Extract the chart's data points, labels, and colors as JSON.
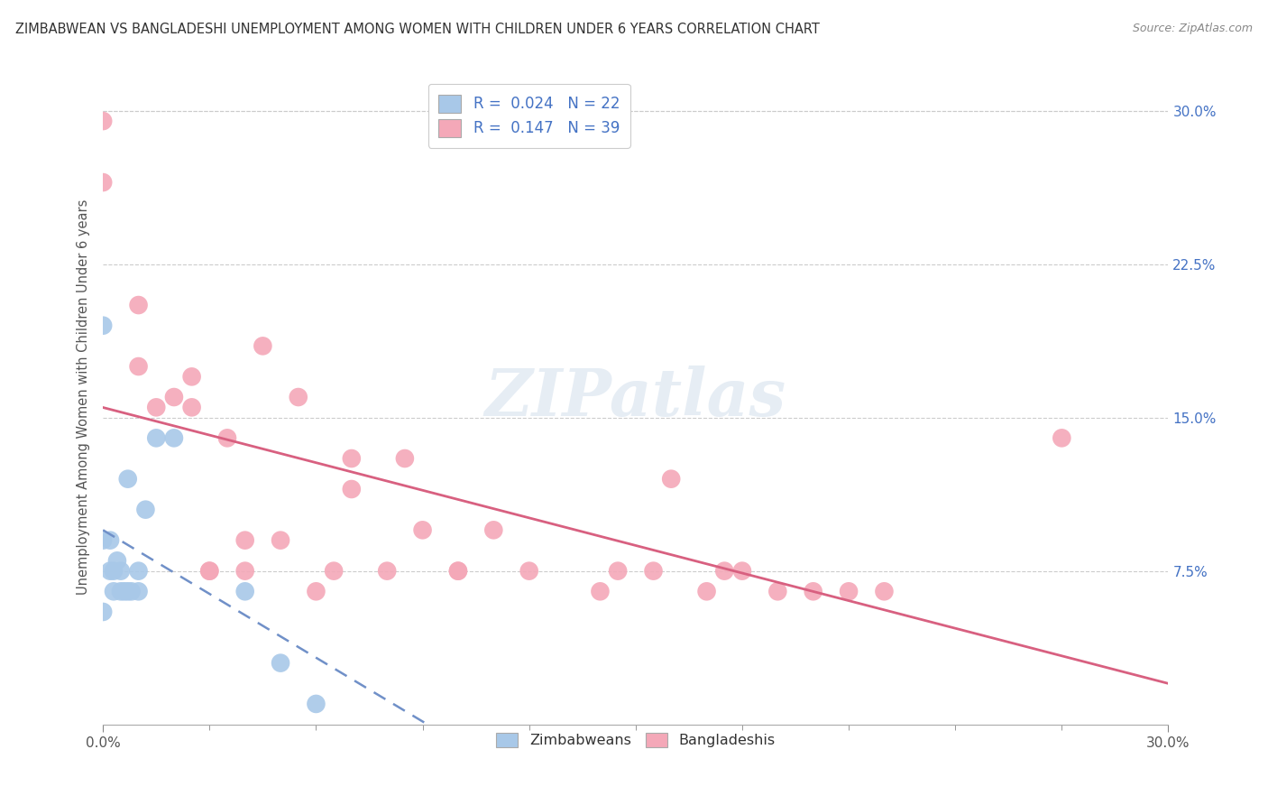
{
  "title": "ZIMBABWEAN VS BANGLADESHI UNEMPLOYMENT AMONG WOMEN WITH CHILDREN UNDER 6 YEARS CORRELATION CHART",
  "source": "Source: ZipAtlas.com",
  "ylabel": "Unemployment Among Women with Children Under 6 years",
  "legend_label1": "R =  0.024   N = 22",
  "legend_label2": "R =  0.147   N = 39",
  "legend_bottom1": "Zimbabweans",
  "legend_bottom2": "Bangladeshis",
  "color_blue": "#a8c8e8",
  "color_pink": "#f4a8b8",
  "color_blue_text": "#4472c4",
  "color_trendline_blue": "#7090c8",
  "color_trendline_pink": "#d86080",
  "ytick_labels": [
    "7.5%",
    "15.0%",
    "22.5%",
    "30.0%"
  ],
  "ytick_vals": [
    0.075,
    0.15,
    0.225,
    0.3
  ],
  "xmin": 0.0,
  "xmax": 0.3,
  "ymin": 0.0,
  "ymax": 0.32,
  "zimbabwe_x": [
    0.0,
    0.0,
    0.0,
    0.002,
    0.002,
    0.003,
    0.003,
    0.004,
    0.005,
    0.005,
    0.006,
    0.007,
    0.007,
    0.008,
    0.01,
    0.01,
    0.012,
    0.015,
    0.02,
    0.04,
    0.05,
    0.06
  ],
  "zimbabwe_y": [
    0.195,
    0.09,
    0.055,
    0.09,
    0.075,
    0.075,
    0.065,
    0.08,
    0.075,
    0.065,
    0.065,
    0.12,
    0.065,
    0.065,
    0.065,
    0.075,
    0.105,
    0.14,
    0.14,
    0.065,
    0.03,
    0.01
  ],
  "bangladesh_x": [
    0.0,
    0.0,
    0.01,
    0.01,
    0.015,
    0.02,
    0.025,
    0.025,
    0.03,
    0.03,
    0.035,
    0.04,
    0.04,
    0.045,
    0.05,
    0.055,
    0.06,
    0.065,
    0.07,
    0.07,
    0.08,
    0.085,
    0.09,
    0.1,
    0.1,
    0.11,
    0.12,
    0.14,
    0.145,
    0.155,
    0.16,
    0.17,
    0.175,
    0.18,
    0.19,
    0.2,
    0.21,
    0.22,
    0.27
  ],
  "bangladesh_y": [
    0.295,
    0.265,
    0.175,
    0.205,
    0.155,
    0.16,
    0.17,
    0.155,
    0.075,
    0.075,
    0.14,
    0.09,
    0.075,
    0.185,
    0.09,
    0.16,
    0.065,
    0.075,
    0.13,
    0.115,
    0.075,
    0.13,
    0.095,
    0.075,
    0.075,
    0.095,
    0.075,
    0.065,
    0.075,
    0.075,
    0.12,
    0.065,
    0.075,
    0.075,
    0.065,
    0.065,
    0.065,
    0.065,
    0.14
  ]
}
